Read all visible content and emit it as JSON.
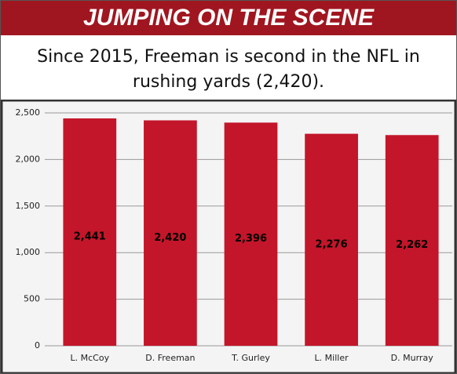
{
  "chart_data": {
    "type": "bar",
    "title": "JUMPING ON THE SCENE",
    "subtitle": "Since 2015, Freeman is second in the NFL in rushing yards (2,420).",
    "categories": [
      "L. McCoy",
      "D. Freeman",
      "T. Gurley",
      "L. Miller",
      "D. Murray"
    ],
    "values": [
      2441,
      2420,
      2396,
      2276,
      2262
    ],
    "value_labels": [
      "2,441",
      "2,420",
      "2,396",
      "2,276",
      "2,262"
    ],
    "color": "#c3162a",
    "ylim": [
      0,
      2500
    ],
    "yticks": [
      0,
      500,
      {
        "value": 1000,
        "label": "1,000"
      },
      {
        "value": 1500,
        "label": "1,500"
      },
      {
        "value": 2000,
        "label": "2,000"
      },
      {
        "value": 2500,
        "label": "2,500"
      }
    ],
    "grid": true
  }
}
